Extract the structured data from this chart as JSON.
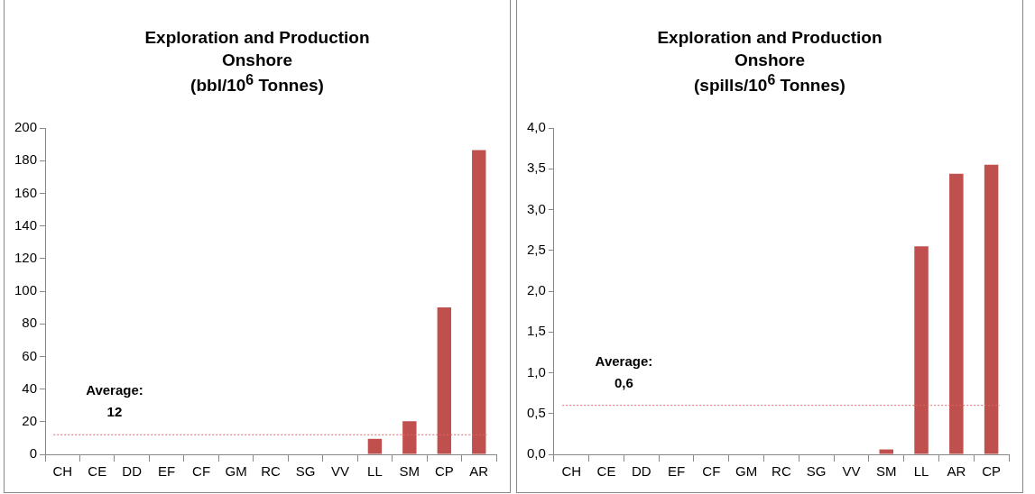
{
  "chart_data": [
    {
      "type": "bar",
      "title": "Exploration and Production\nOnshore\n(bbl/10$^{6}$ Tonnes)",
      "categories": [
        "CH",
        "CE",
        "DD",
        "EF",
        "CF",
        "GM",
        "RC",
        "SG",
        "VV",
        "LL",
        "SM",
        "CP",
        "AR"
      ],
      "values": [
        0,
        0,
        0,
        0,
        0,
        0,
        0,
        0,
        0,
        9.5,
        20.3,
        90,
        186.5
      ],
      "color": "#c0504d",
      "ylim": [
        0,
        200
      ],
      "yticks": [
        0,
        20,
        40,
        60,
        80,
        100,
        120,
        140,
        160,
        180,
        200
      ],
      "grid": false,
      "ref_lines": [
        {
          "axis": "y",
          "value": 12,
          "label": "Average:\n12",
          "color": "#e06666",
          "line_style": "dotted"
        }
      ]
    },
    {
      "type": "bar",
      "title": "Exploration and Production\nOnshore\n(spills/10$^{6}$ Tonnes)",
      "categories": [
        "CH",
        "CE",
        "DD",
        "EF",
        "CF",
        "GM",
        "RC",
        "SG",
        "VV",
        "SM",
        "LL",
        "AR",
        "CP"
      ],
      "values": [
        0,
        0,
        0,
        0,
        0,
        0,
        0,
        0,
        0,
        0.06,
        2.55,
        3.44,
        3.55
      ],
      "color": "#c0504d",
      "ylim": [
        0,
        4
      ],
      "yticks": [
        {
          "value": 0,
          "label": "0,0"
        },
        {
          "value": 0.5,
          "label": "0,5"
        },
        {
          "value": 1,
          "label": "1,0"
        },
        {
          "value": 1.5,
          "label": "1,5"
        },
        {
          "value": 2,
          "label": "2,0"
        },
        {
          "value": 2.5,
          "label": "2,5"
        },
        {
          "value": 3,
          "label": "3,0"
        },
        {
          "value": 3.5,
          "label": "3,5"
        },
        {
          "value": 4,
          "label": "4,0"
        }
      ],
      "grid": false,
      "ref_lines": [
        {
          "axis": "y",
          "value": 0.6,
          "label": "Average:\n0,6",
          "color": "#e06666",
          "line_style": "dotted"
        }
      ]
    }
  ]
}
